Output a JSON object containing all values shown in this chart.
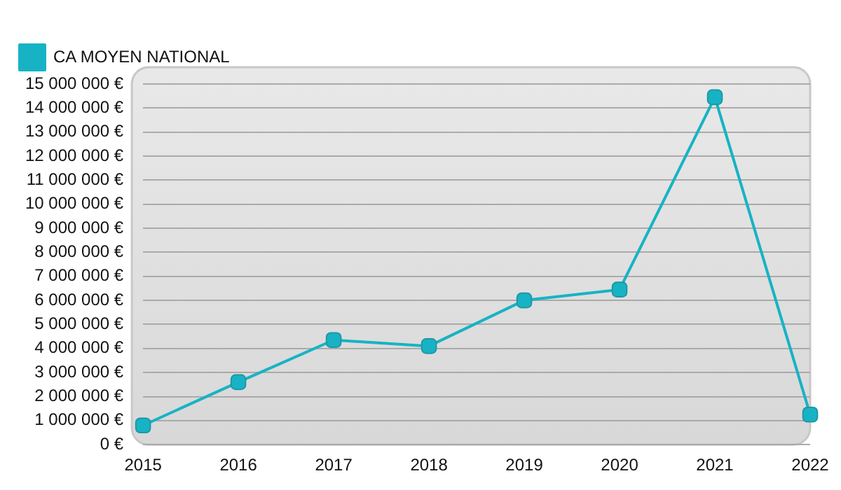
{
  "chart_data": {
    "type": "line",
    "categories": [
      "2015",
      "2016",
      "2017",
      "2018",
      "2019",
      "2020",
      "2021",
      "2022"
    ],
    "series": [
      {
        "name": "CA MOYEN NATIONAL",
        "color": "#17b3c4",
        "values": [
          800000,
          2600000,
          4350000,
          4100000,
          6000000,
          6450000,
          14450000,
          1250000
        ]
      }
    ],
    "ylim": [
      0,
      15000000
    ],
    "yticks": [
      {
        "value": 0,
        "label": "0 €"
      },
      {
        "value": 1000000,
        "label": "1 000 000 €"
      },
      {
        "value": 2000000,
        "label": "2 000 000 €"
      },
      {
        "value": 3000000,
        "label": "3 000 000 €"
      },
      {
        "value": 4000000,
        "label": "4 000 000 €"
      },
      {
        "value": 5000000,
        "label": "5 000 000 €"
      },
      {
        "value": 6000000,
        "label": "6 000 000 €"
      },
      {
        "value": 7000000,
        "label": "7 000 000 €"
      },
      {
        "value": 8000000,
        "label": "8 000 000 €"
      },
      {
        "value": 9000000,
        "label": "9 000 000 €"
      },
      {
        "value": 10000000,
        "label": "10 000 000 €"
      },
      {
        "value": 11000000,
        "label": "11 000 000 €"
      },
      {
        "value": 12000000,
        "label": "12 000 000 €"
      },
      {
        "value": 13000000,
        "label": "13 000 000 €"
      },
      {
        "value": 14000000,
        "label": "14 000 000 €"
      },
      {
        "value": 15000000,
        "label": "15 000 000 €"
      }
    ],
    "grid": "y",
    "legend": "top left",
    "marker": "square",
    "line_style": "solid"
  }
}
